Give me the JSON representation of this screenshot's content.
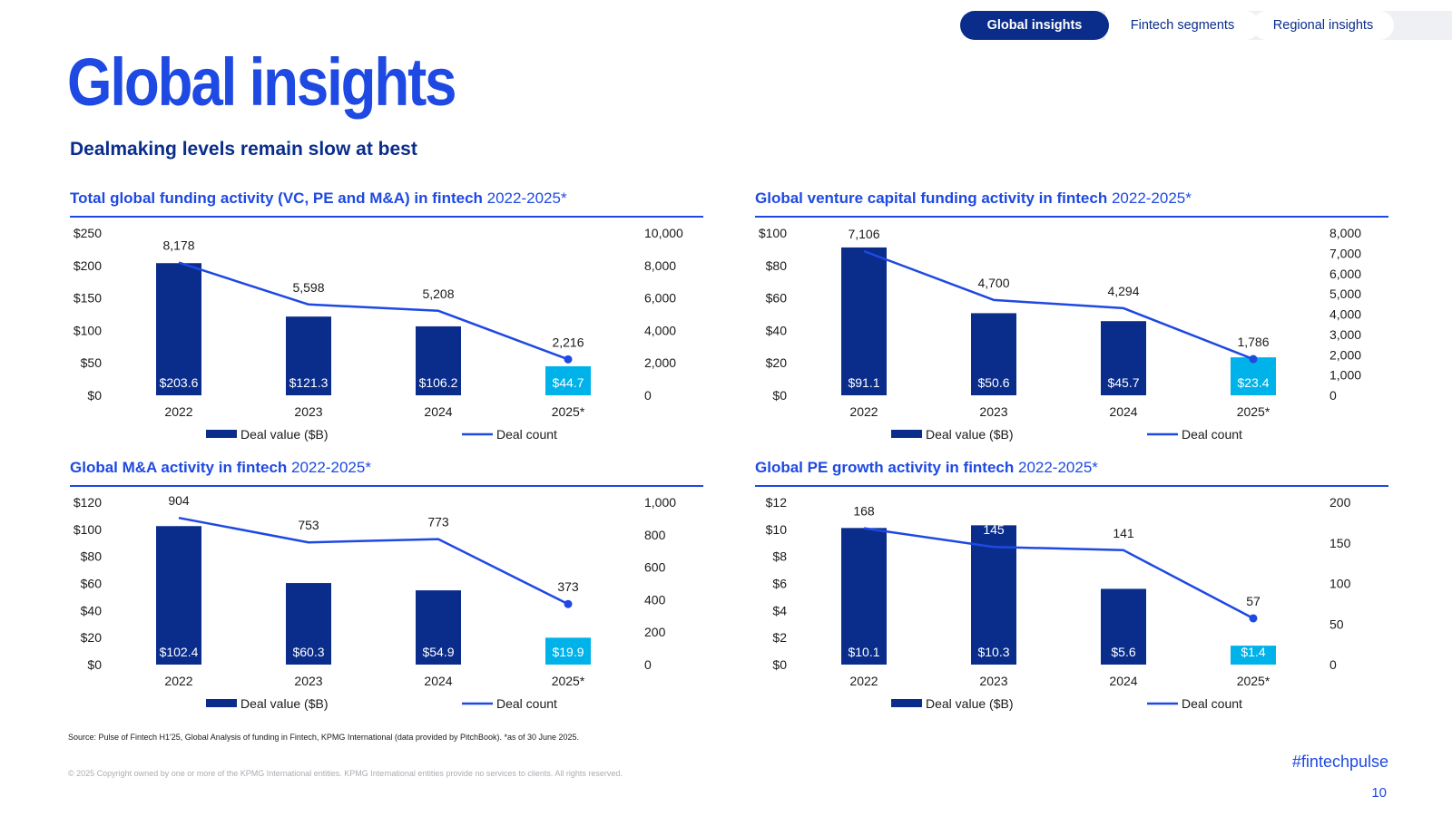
{
  "nav": {
    "tabs": [
      {
        "label": "Global insights",
        "active": true
      },
      {
        "label": "Fintech segments",
        "active": false
      },
      {
        "label": "Regional insights",
        "active": false
      }
    ]
  },
  "page": {
    "title": "Global insights",
    "subtitle": "Dealmaking levels remain slow at best",
    "source": "Source: Pulse of Fintech H1'25, Global Analysis of funding in Fintech, KPMG International (data provided by PitchBook). *as of 30 June 2025.",
    "copyright": "© 2025 Copyright owned by one or more of the KPMG International entities. KPMG International entities provide no services to clients. All rights reserved.",
    "hashtag": "#fintechpulse",
    "page_number": "10"
  },
  "colors": {
    "bar": "#0a2d8c",
    "bar_highlight": "#00b2ea",
    "line": "#1e49e2",
    "title_blue": "#1e49e2",
    "navy": "#0a2d8c"
  },
  "legend": {
    "bar": "Deal value ($B)",
    "line": "Deal count"
  },
  "chart_data": [
    {
      "type": "bar",
      "title_bold": "Total global funding activity (VC, PE and M&A) in fintech",
      "title_rest": " 2022-2025*",
      "categories": [
        "2022",
        "2023",
        "2024",
        "2025*"
      ],
      "series": [
        {
          "name": "Deal value ($B)",
          "type": "bar",
          "axis": "left",
          "values": [
            203.6,
            121.3,
            106.2,
            44.7
          ],
          "labels": [
            "$203.6",
            "$121.3",
            "$106.2",
            "$44.7"
          ]
        },
        {
          "name": "Deal count",
          "type": "line",
          "axis": "right",
          "values": [
            8178,
            5598,
            5208,
            2216
          ],
          "labels": [
            "8,178",
            "5,598",
            "5,208",
            "2,216"
          ]
        }
      ],
      "left_axis": {
        "ticks": [
          "$0",
          "$50",
          "$100",
          "$150",
          "$200",
          "$250"
        ],
        "max": 250
      },
      "right_axis": {
        "ticks": [
          "0",
          "2,000",
          "4,000",
          "6,000",
          "8,000",
          "10,000"
        ],
        "max": 10000
      },
      "legend_placement": "bottom",
      "grid": false
    },
    {
      "type": "bar",
      "title_bold": "Global venture capital funding activity in fintech",
      "title_rest": " 2022-2025*",
      "categories": [
        "2022",
        "2023",
        "2024",
        "2025*"
      ],
      "series": [
        {
          "name": "Deal value ($B)",
          "type": "bar",
          "axis": "left",
          "values": [
            91.1,
            50.6,
            45.7,
            23.4
          ],
          "labels": [
            "$91.1",
            "$50.6",
            "$45.7",
            "$23.4"
          ]
        },
        {
          "name": "Deal count",
          "type": "line",
          "axis": "right",
          "values": [
            7106,
            4700,
            4294,
            1786
          ],
          "labels": [
            "7,106",
            "4,700",
            "4,294",
            "1,786"
          ]
        }
      ],
      "left_axis": {
        "ticks": [
          "$0",
          "$20",
          "$40",
          "$60",
          "$80",
          "$100"
        ],
        "max": 100
      },
      "right_axis": {
        "ticks": [
          "0",
          "1,000",
          "2,000",
          "3,000",
          "4,000",
          "5,000",
          "6,000",
          "7,000",
          "8,000"
        ],
        "max": 8000
      },
      "legend_placement": "bottom",
      "grid": false
    },
    {
      "type": "bar",
      "title_bold": "Global M&A activity in fintech",
      "title_rest": " 2022-2025*",
      "categories": [
        "2022",
        "2023",
        "2024",
        "2025*"
      ],
      "series": [
        {
          "name": "Deal value ($B)",
          "type": "bar",
          "axis": "left",
          "values": [
            102.4,
            60.3,
            54.9,
            19.9
          ],
          "labels": [
            "$102.4",
            "$60.3",
            "$54.9",
            "$19.9"
          ]
        },
        {
          "name": "Deal count",
          "type": "line",
          "axis": "right",
          "values": [
            904,
            753,
            773,
            373
          ],
          "labels": [
            "904",
            "753",
            "773",
            "373"
          ]
        }
      ],
      "left_axis": {
        "ticks": [
          "$0",
          "$20",
          "$40",
          "$60",
          "$80",
          "$100",
          "$120"
        ],
        "max": 120
      },
      "right_axis": {
        "ticks": [
          "0",
          "200",
          "400",
          "600",
          "800",
          "1,000"
        ],
        "max": 1000
      },
      "legend_placement": "bottom",
      "grid": false
    },
    {
      "type": "bar",
      "title_bold": "Global PE growth activity in fintech",
      "title_rest": " 2022-2025*",
      "categories": [
        "2022",
        "2023",
        "2024",
        "2025*"
      ],
      "series": [
        {
          "name": "Deal value ($B)",
          "type": "bar",
          "axis": "left",
          "values": [
            10.1,
            10.3,
            5.6,
            1.4
          ],
          "labels": [
            "$10.1",
            "$10.3",
            "$5.6",
            "$1.4"
          ]
        },
        {
          "name": "Deal count",
          "type": "line",
          "axis": "right",
          "values": [
            168,
            145,
            141,
            57
          ],
          "labels": [
            "168",
            "145",
            "141",
            "57"
          ]
        }
      ],
      "left_axis": {
        "ticks": [
          "$0",
          "$2",
          "$4",
          "$6",
          "$8",
          "$10",
          "$12"
        ],
        "max": 12
      },
      "right_axis": {
        "ticks": [
          "0",
          "50",
          "100",
          "150",
          "200"
        ],
        "max": 200
      },
      "legend_placement": "bottom",
      "grid": false
    }
  ]
}
